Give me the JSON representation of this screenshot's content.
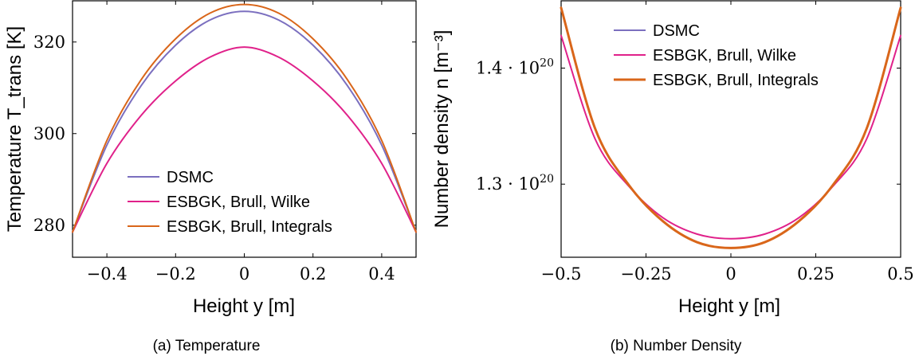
{
  "chart_data": [
    {
      "type": "line",
      "caption": "(a) Temperature",
      "xlabel": "Height y [m]",
      "ylabel": "Temperature T_trans [K]",
      "xlim": [
        -0.5,
        0.5
      ],
      "ylim": [
        273,
        329
      ],
      "xticks": [
        -0.4,
        -0.2,
        0,
        0.2,
        0.4
      ],
      "xtick_labels": [
        "−0.4",
        "−0.2",
        "0",
        "0.2",
        "0.4"
      ],
      "yticks": [
        280,
        300,
        320
      ],
      "ytick_labels": [
        "280",
        "300",
        "320"
      ],
      "legend_position": "bottom-center",
      "series": [
        {
          "name": "DSMC",
          "color": "#7b6fbf",
          "width": 2,
          "x": [
            -0.5,
            -0.4,
            -0.3,
            -0.2,
            -0.1,
            0,
            0.1,
            0.2,
            0.3,
            0.4,
            0.5
          ],
          "y": [
            278.5,
            297.5,
            310.5,
            319.3,
            324.8,
            326.7,
            324.8,
            319.3,
            310.5,
            297.5,
            278.5
          ]
        },
        {
          "name": "ESBGK, Brull, Wilke",
          "color": "#e0218a",
          "width": 2,
          "x": [
            -0.5,
            -0.4,
            -0.3,
            -0.2,
            -0.1,
            0,
            0.1,
            0.2,
            0.3,
            0.4,
            0.5
          ],
          "y": [
            278.5,
            293.5,
            304.0,
            311.5,
            316.7,
            318.9,
            316.7,
            311.5,
            304.0,
            293.5,
            278.5
          ]
        },
        {
          "name": "ESBGK, Brull, Integrals",
          "color": "#d9661a",
          "width": 2,
          "x": [
            -0.5,
            -0.4,
            -0.3,
            -0.2,
            -0.1,
            0,
            0.1,
            0.2,
            0.3,
            0.4,
            0.5
          ],
          "y": [
            278.5,
            298.5,
            311.8,
            320.7,
            326.3,
            328.2,
            326.3,
            320.7,
            311.8,
            298.5,
            278.5
          ]
        }
      ]
    },
    {
      "type": "line",
      "caption": "(b) Number Density",
      "xlabel": "Height y [m]",
      "ylabel": "Number density n [m⁻³]",
      "xlim": [
        -0.5,
        0.5
      ],
      "ylim": [
        1.237e+20,
        1.458e+20
      ],
      "xticks": [
        -0.5,
        -0.25,
        0,
        0.25,
        0.5
      ],
      "xtick_labels": [
        "−0.5",
        "−0.25",
        "0",
        "0.25",
        "0.5"
      ],
      "yticks": [
        1.3e+20,
        1.4e+20
      ],
      "ytick_labels": [
        "1.3 · 10",
        "1.4 · 10"
      ],
      "ytick_exponent": "20",
      "legend_position": "top-center",
      "series": [
        {
          "name": "DSMC",
          "color": "#7b6fbf",
          "width": 2,
          "x": [
            -0.5,
            -0.4,
            -0.3,
            -0.2,
            -0.1,
            0,
            0.1,
            0.2,
            0.3,
            0.4,
            0.5
          ],
          "y": [
            1.452e+20,
            1.348e+20,
            1.299e+20,
            1.268e+20,
            1.25e+20,
            1.245e+20,
            1.25e+20,
            1.268e+20,
            1.299e+20,
            1.348e+20,
            1.452e+20
          ]
        },
        {
          "name": "ESBGK, Brull, Wilke",
          "color": "#e0218a",
          "width": 2,
          "x": [
            -0.5,
            -0.4,
            -0.3,
            -0.2,
            -0.1,
            0,
            0.1,
            0.2,
            0.3,
            0.4,
            0.5
          ],
          "y": [
            1.428e+20,
            1.339e+20,
            1.298e+20,
            1.271e+20,
            1.257e+20,
            1.253e+20,
            1.257e+20,
            1.271e+20,
            1.298e+20,
            1.339e+20,
            1.428e+20
          ]
        },
        {
          "name": "ESBGK, Brull, Integrals",
          "color": "#d9661a",
          "width": 3,
          "x": [
            -0.5,
            -0.4,
            -0.3,
            -0.2,
            -0.1,
            0,
            0.1,
            0.2,
            0.3,
            0.4,
            0.5
          ],
          "y": [
            1.452e+20,
            1.348e+20,
            1.299e+20,
            1.268e+20,
            1.25e+20,
            1.245e+20,
            1.25e+20,
            1.268e+20,
            1.299e+20,
            1.348e+20,
            1.452e+20
          ]
        }
      ]
    }
  ]
}
